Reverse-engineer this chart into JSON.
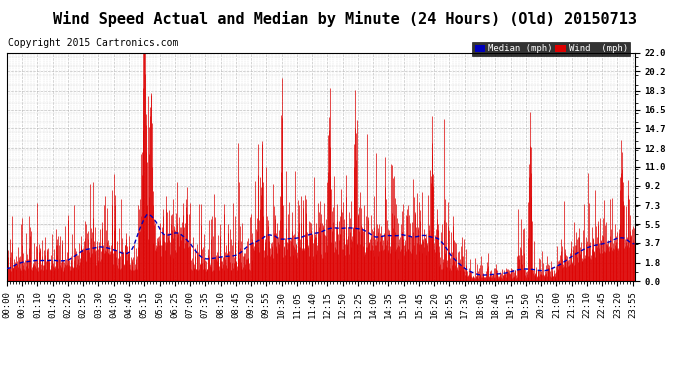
{
  "title": "Wind Speed Actual and Median by Minute (24 Hours) (Old) 20150713",
  "copyright": "Copyright 2015 Cartronics.com",
  "ylabel_right_ticks": [
    0.0,
    1.8,
    3.7,
    5.5,
    7.3,
    9.2,
    11.0,
    12.8,
    14.7,
    16.5,
    18.3,
    20.2,
    22.0
  ],
  "ylim": [
    0.0,
    22.0
  ],
  "bg_color": "#ffffff",
  "plot_bg_color": "#ffffff",
  "grid_color": "#aaaaaa",
  "wind_color": "#dd0000",
  "median_color": "#0000bb",
  "legend_median_bg": "#0000bb",
  "legend_wind_bg": "#dd0000",
  "title_fontsize": 11,
  "copyright_fontsize": 7,
  "tick_fontsize": 6.5,
  "n_minutes": 1440,
  "seed": 42,
  "tick_step": 35
}
